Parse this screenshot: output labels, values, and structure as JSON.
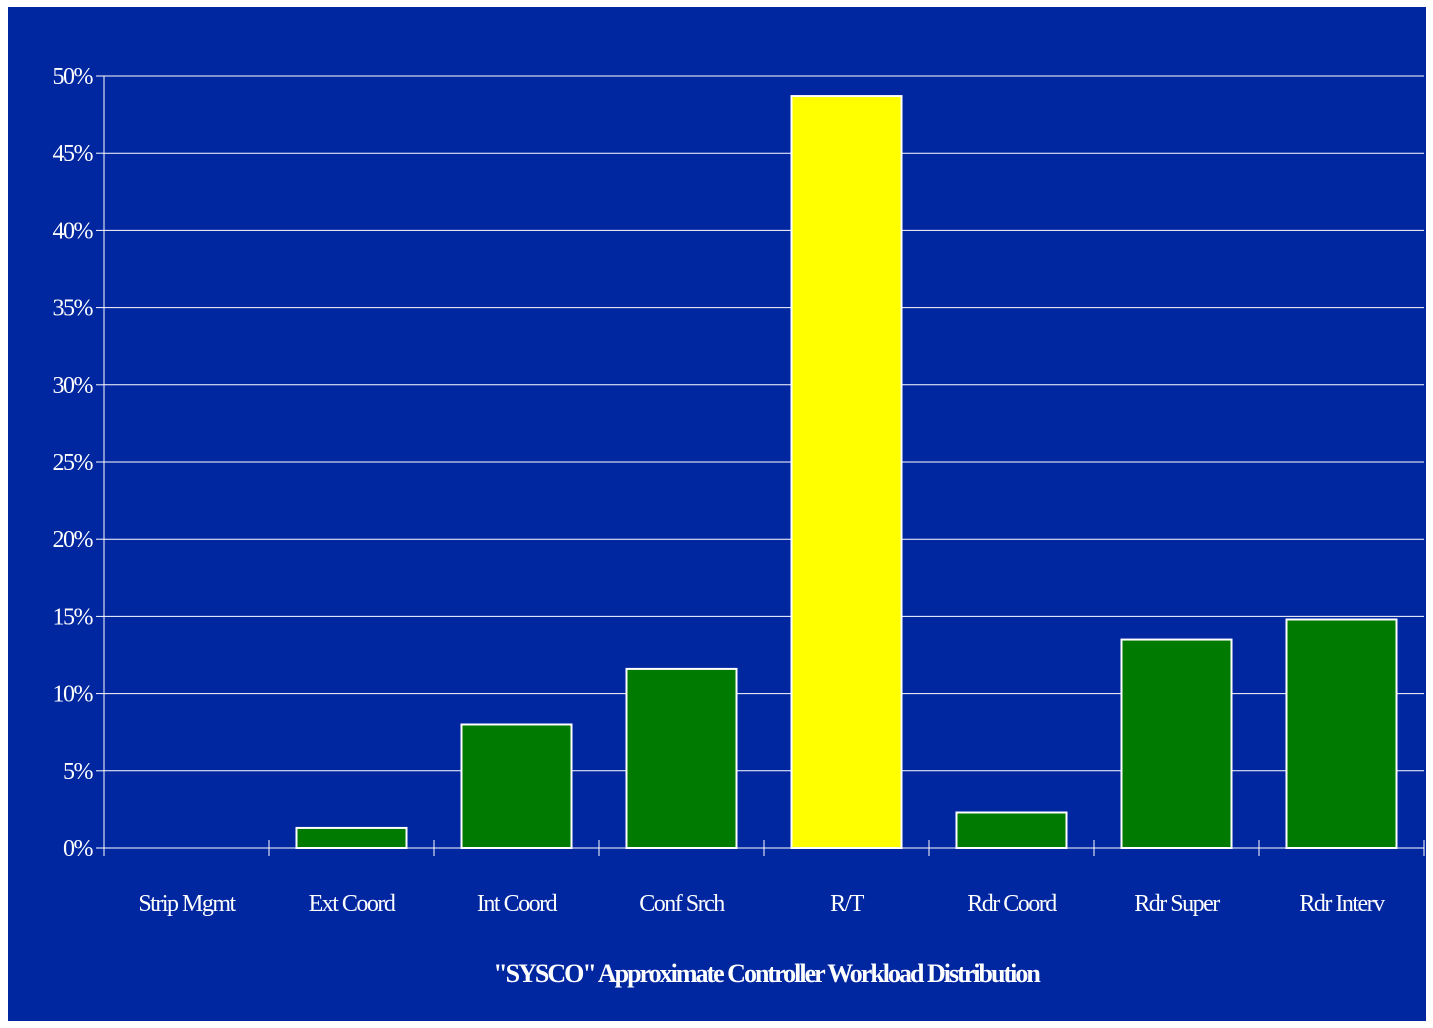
{
  "chart_data": {
    "type": "bar",
    "title": "",
    "xlabel": "\"SYSCO\" Approximate Controller Workload Distribution",
    "ylabel": "",
    "categories": [
      "Strip Mgmt",
      "Ext Coord",
      "Int Coord",
      "Conf Srch",
      "R/T",
      "Rdr Coord",
      "Rdr Super",
      "Rdr Interv"
    ],
    "values": [
      0,
      1.3,
      8.0,
      11.6,
      48.7,
      2.3,
      13.5,
      14.8
    ],
    "ylim": [
      0,
      50
    ],
    "yticks": [
      "0%",
      "5%",
      "10%",
      "15%",
      "20%",
      "25%",
      "30%",
      "35%",
      "40%",
      "45%",
      "50%"
    ],
    "grid": true,
    "legend": "none",
    "colors": {
      "background": "#0026a0",
      "bar_default": "#007a00",
      "bar_highlight": "#ffff00",
      "highlight_category": "R/T",
      "bar_outline": "#ffffff",
      "grid": "#ffffff",
      "text": "#ffffff"
    }
  }
}
